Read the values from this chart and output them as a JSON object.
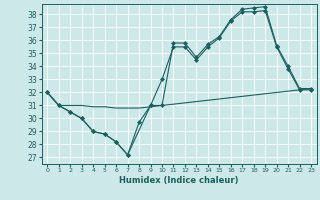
{
  "xlabel": "Humidex (Indice chaleur)",
  "bg_color": "#cde8e8",
  "line_color": "#1a6060",
  "grid_color": "#ffffff",
  "xlim": [
    -0.5,
    23.5
  ],
  "ylim": [
    26.5,
    38.8
  ],
  "yticks": [
    27,
    28,
    29,
    30,
    31,
    32,
    33,
    34,
    35,
    36,
    37,
    38
  ],
  "xticks": [
    0,
    1,
    2,
    3,
    4,
    5,
    6,
    7,
    8,
    9,
    10,
    11,
    12,
    13,
    14,
    15,
    16,
    17,
    18,
    19,
    20,
    21,
    22,
    23
  ],
  "line1_x": [
    0,
    1,
    2,
    3,
    4,
    5,
    6,
    7,
    8,
    9,
    10,
    11,
    12,
    13,
    14,
    15,
    16,
    17,
    18,
    19,
    20,
    21,
    22,
    23
  ],
  "line1_y": [
    32,
    31,
    30.5,
    30,
    29,
    28.8,
    28.2,
    27.2,
    29.7,
    31.0,
    33.0,
    35.5,
    35.5,
    34.5,
    35.5,
    36.2,
    37.5,
    38.2,
    38.2,
    38.3,
    35.5,
    33.8,
    32.2,
    32.2
  ],
  "line2_x": [
    0,
    1,
    2,
    3,
    4,
    5,
    6,
    7,
    9,
    10,
    11,
    12,
    13,
    14,
    15,
    16,
    17,
    18,
    19,
    20,
    21,
    22,
    23
  ],
  "line2_y": [
    32,
    31,
    30.5,
    30,
    29,
    28.8,
    28.2,
    27.2,
    31.0,
    31.0,
    35.8,
    35.8,
    34.7,
    35.7,
    36.3,
    37.6,
    38.4,
    38.5,
    38.6,
    35.6,
    34.0,
    32.3,
    32.3
  ],
  "line3_x": [
    0,
    1,
    2,
    3,
    4,
    5,
    6,
    7,
    8,
    9,
    10,
    11,
    12,
    13,
    14,
    15,
    16,
    17,
    18,
    19,
    20,
    21,
    22,
    23
  ],
  "line3_y": [
    32,
    31,
    31.0,
    31.0,
    30.9,
    30.9,
    30.8,
    30.8,
    30.8,
    30.9,
    31.0,
    31.1,
    31.2,
    31.3,
    31.4,
    31.5,
    31.6,
    31.7,
    31.8,
    31.9,
    32.0,
    32.1,
    32.2,
    32.3
  ]
}
